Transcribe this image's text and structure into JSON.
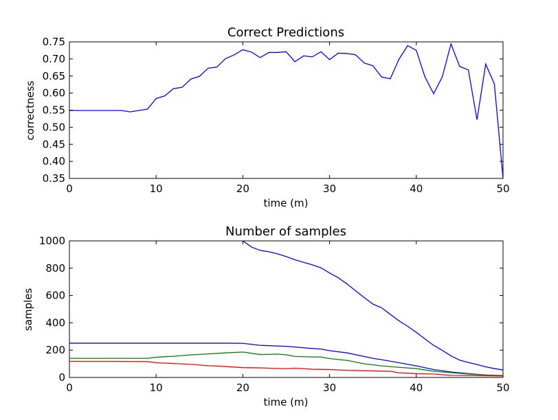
{
  "colors": {
    "blue": "#0000ff",
    "green": "#008000",
    "red": "#ff0000",
    "axis": "#000000"
  },
  "chart_data": [
    {
      "type": "line",
      "title": "Correct Predictions",
      "xlabel": "time (m)",
      "ylabel": "correctness",
      "xlim": [
        0,
        50
      ],
      "ylim": [
        0.35,
        0.75
      ],
      "xticks": [
        0,
        10,
        20,
        30,
        40,
        50
      ],
      "yticks": [
        0.35,
        0.4,
        0.45,
        0.5,
        0.55,
        0.6,
        0.65,
        0.7,
        0.75
      ],
      "ytick_labels": [
        "0.35",
        "0.40",
        "0.45",
        "0.50",
        "0.55",
        "0.60",
        "0.65",
        "0.70",
        "0.75"
      ],
      "grid": false,
      "series": [
        {
          "color": "blue",
          "x": [
            0,
            1,
            2,
            3,
            4,
            5,
            6,
            7,
            8,
            9,
            10,
            11,
            12,
            13,
            14,
            15,
            16,
            17,
            18,
            19,
            20,
            21,
            22,
            23,
            24,
            25,
            26,
            27,
            28,
            29,
            30,
            31,
            32,
            33,
            34,
            35,
            36,
            37,
            38,
            39,
            40,
            41,
            42,
            43,
            44,
            45,
            46,
            47,
            48,
            49,
            50
          ],
          "y": [
            0.549,
            0.549,
            0.549,
            0.549,
            0.549,
            0.549,
            0.549,
            0.545,
            0.549,
            0.553,
            0.584,
            0.592,
            0.613,
            0.617,
            0.641,
            0.649,
            0.673,
            0.676,
            0.701,
            0.712,
            0.727,
            0.72,
            0.704,
            0.719,
            0.719,
            0.721,
            0.692,
            0.709,
            0.706,
            0.721,
            0.698,
            0.717,
            0.716,
            0.712,
            0.688,
            0.68,
            0.647,
            0.642,
            0.699,
            0.739,
            0.725,
            0.647,
            0.598,
            0.648,
            0.744,
            0.678,
            0.668,
            0.522,
            0.685,
            0.627,
            0.35
          ]
        }
      ]
    },
    {
      "type": "line",
      "title": "Number of samples",
      "xlabel": "time (m)",
      "ylabel": "samples",
      "xlim": [
        0,
        50
      ],
      "ylim": [
        0,
        1000
      ],
      "xticks": [
        0,
        10,
        20,
        30,
        40,
        50
      ],
      "yticks": [
        0,
        200,
        400,
        600,
        800,
        1000
      ],
      "ytick_labels": [
        "0",
        "200",
        "400",
        "600",
        "800",
        "1000"
      ],
      "grid": false,
      "series": [
        {
          "color": "blue",
          "x": [
            20,
            21,
            22,
            23,
            24,
            25,
            26,
            27,
            28,
            29,
            30,
            31,
            32,
            33,
            34,
            35,
            36,
            37,
            38,
            39,
            40,
            41,
            42,
            43,
            44,
            45,
            46,
            47,
            48,
            49,
            50
          ],
          "y": [
            1000,
            955,
            930,
            920,
            905,
            885,
            862,
            843,
            825,
            803,
            765,
            730,
            685,
            635,
            585,
            537,
            510,
            462,
            415,
            375,
            330,
            282,
            235,
            198,
            158,
            127,
            110,
            95,
            78,
            65,
            55
          ]
        },
        {
          "color": "blue",
          "x": [
            0,
            5,
            10,
            15,
            18,
            20,
            22,
            25,
            28,
            29,
            30,
            32,
            35,
            36,
            38,
            40,
            42,
            44,
            46,
            48,
            50
          ],
          "y": [
            251,
            251,
            251,
            251,
            251,
            250,
            235,
            228,
            212,
            208,
            196,
            180,
            140,
            130,
            108,
            85,
            58,
            40,
            28,
            18,
            12
          ]
        },
        {
          "color": "green",
          "x": [
            0,
            5,
            9,
            10,
            12,
            14,
            16,
            18,
            20,
            22,
            24,
            25,
            26,
            28,
            29,
            30,
            32,
            34,
            36,
            38,
            40,
            42,
            44,
            46,
            48,
            50
          ],
          "y": [
            140,
            140,
            140,
            148,
            155,
            165,
            172,
            180,
            186,
            168,
            171,
            166,
            154,
            150,
            150,
            138,
            125,
            100,
            85,
            74,
            65,
            45,
            35,
            25,
            18,
            14
          ]
        },
        {
          "color": "red",
          "x": [
            0,
            5,
            9,
            10,
            12,
            14,
            16,
            18,
            20,
            22,
            24,
            25,
            26,
            28,
            30,
            32,
            35,
            37,
            38,
            40,
            42,
            44,
            46,
            48,
            50
          ],
          "y": [
            118,
            118,
            116,
            108,
            102,
            96,
            86,
            80,
            72,
            70,
            66,
            64,
            68,
            60,
            58,
            52,
            48,
            45,
            34,
            28,
            25,
            15,
            14,
            12,
            10
          ]
        }
      ]
    }
  ]
}
